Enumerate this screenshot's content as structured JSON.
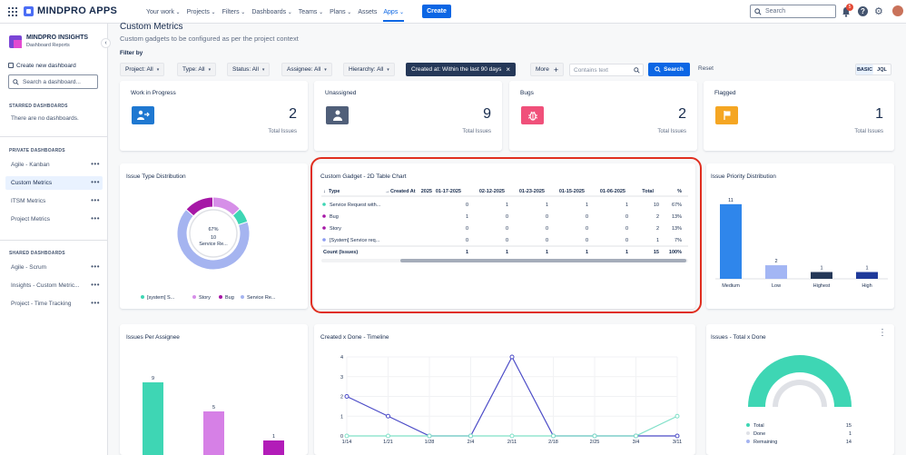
{
  "topbar": {
    "brand": "MINDPRO APPS",
    "nav": [
      {
        "label": "Your work",
        "has_caret": true
      },
      {
        "label": "Projects",
        "has_caret": true
      },
      {
        "label": "Filters",
        "has_caret": true
      },
      {
        "label": "Dashboards",
        "has_caret": true
      },
      {
        "label": "Teams",
        "has_caret": true
      },
      {
        "label": "Plans",
        "has_caret": true
      },
      {
        "label": "Assets",
        "has_caret": false
      },
      {
        "label": "Apps",
        "has_caret": true,
        "active": true
      }
    ],
    "create_label": "Create",
    "search_placeholder": "Search",
    "notification_count": "5",
    "help_label": "?",
    "accent": "#0c66e4"
  },
  "sidebar": {
    "title": "MINDPRO INSIGHTS",
    "subtitle": "Dashboard Reports",
    "create_label": "Create new dashboard",
    "search_placeholder": "Search a dashboard...",
    "starred_title": "STARRED DASHBOARDS",
    "starred_empty": "There are no dashboards.",
    "private_title": "PRIVATE DASHBOARDS",
    "private_items": [
      "Agile - Kanban",
      "Custom Metrics",
      "ITSM Metrics",
      "Project Metrics"
    ],
    "active_item": "Custom Metrics",
    "shared_title": "SHARED DASHBOARDS",
    "shared_items": [
      "Agile - Scrum",
      "Insights - Custom Metric...",
      "Project - Time Tracking"
    ]
  },
  "header": {
    "title": "Custom Metrics",
    "subtitle": "Custom gadgets to be configured as per the project context",
    "filter_by": "Filter by"
  },
  "filters": {
    "project": "Project: All",
    "type": "Type: All",
    "status": "Status: All",
    "assignee": "Assignee: All",
    "hierarchy": "Hierarchy: All",
    "created": "Created at: Within the last 90 days",
    "more": "More",
    "contains_placeholder": "Contains text",
    "search_label": "Search",
    "reset_label": "Reset",
    "mode_basic": "BASIC",
    "mode_jql": "JQL"
  },
  "kpis": [
    {
      "title": "Work in Progress",
      "value": "2",
      "label": "Total Issues",
      "icon": "arrow-right-user-icon",
      "color": "#1f78d1"
    },
    {
      "title": "Unassigned",
      "value": "9",
      "label": "Total Issues",
      "icon": "user-icon",
      "color": "#505f79"
    },
    {
      "title": "Bugs",
      "value": "2",
      "label": "Total Issues",
      "icon": "bug-icon",
      "color": "#f0507a"
    },
    {
      "title": "Flagged",
      "value": "1",
      "label": "Total Issues",
      "icon": "flag-icon",
      "color": "#f5a623"
    }
  ],
  "issue_type_distribution": {
    "title": "Issue Type Distribution",
    "center_pct": "67%",
    "center_count": "10",
    "center_label": "Service Re...",
    "legend": [
      {
        "label": "[system] S...",
        "color": "#3ed6b4"
      },
      {
        "label": "Story",
        "color": "#d68fe8"
      },
      {
        "label": "Bug",
        "color": "#a617a6"
      },
      {
        "label": "Service Re...",
        "color": "#a5b4f0"
      }
    ]
  },
  "table_gadget": {
    "title": "Custom Gadget - 2D Table Chart",
    "headers": [
      "Type",
      "Created At",
      "2025",
      "01-17-2025",
      "02-12-2025",
      "01-23-2025",
      "01-15-2025",
      "01-06-2025",
      "Total",
      "%"
    ],
    "rows": [
      {
        "type": "Service Request with...",
        "color": "#3ed6b4",
        "cells": [
          "0",
          "1",
          "1",
          "1",
          "1",
          "10",
          "67%"
        ]
      },
      {
        "type": "Bug",
        "color": "#a617a6",
        "cells": [
          "1",
          "0",
          "0",
          "0",
          "0",
          "2",
          "13%"
        ]
      },
      {
        "type": "Story",
        "color": "#a617a6",
        "cells": [
          "0",
          "0",
          "0",
          "0",
          "0",
          "2",
          "13%"
        ]
      },
      {
        "type": "[System] Service req...",
        "color": "#8b9bf0",
        "cells": [
          "0",
          "0",
          "0",
          "0",
          "0",
          "1",
          "7%"
        ]
      }
    ],
    "footer": {
      "label": "Count (Issues)",
      "cells": [
        "1",
        "1",
        "1",
        "1",
        "1",
        "15",
        "100%"
      ]
    }
  },
  "priority_distribution": {
    "title": "Issue Priority Distribution",
    "colors": [
      "#2f86eb",
      "#a3b6f4",
      "#253858",
      "#1f3a9a"
    ]
  },
  "issues_per_assignee": {
    "title": "Issues Per Assignee",
    "colors": [
      "#3ed6b4",
      "#d680e6",
      "#b21cb8"
    ]
  },
  "timeline": {
    "title": "Created x Done - Timeline",
    "colors": {
      "created": "#4b4bc7",
      "done": "#7fe0c8"
    }
  },
  "total_done": {
    "title": "Issues - Total x Done",
    "legend": [
      {
        "label": "Total",
        "value": "15",
        "color": "#3ed6b4"
      },
      {
        "label": "Done",
        "value": "1",
        "color": "#dfe1e6"
      },
      {
        "label": "Remaining",
        "value": "14",
        "color": "#a5b4f0"
      }
    ]
  },
  "chart_data": [
    {
      "type": "pie",
      "title": "Issue Type Distribution",
      "categories": [
        "[system] S...",
        "Story",
        "Bug",
        "Service Re..."
      ],
      "values": [
        1,
        2,
        2,
        10
      ]
    },
    {
      "type": "bar",
      "title": "Issue Priority Distribution",
      "categories": [
        "Medium",
        "Low",
        "Highest",
        "High"
      ],
      "values": [
        11,
        2,
        1,
        1
      ],
      "ylim": [
        0,
        12
      ]
    },
    {
      "type": "bar",
      "title": "Issues Per Assignee",
      "categories": [
        "",
        "",
        ""
      ],
      "values": [
        9,
        5,
        1
      ],
      "ylim": [
        0,
        10
      ]
    },
    {
      "type": "line",
      "title": "Created x Done - Timeline",
      "x": [
        "1/14",
        "1/21",
        "1/28",
        "2/4",
        "2/11",
        "2/18",
        "2/25",
        "3/4",
        "3/11"
      ],
      "ylim": [
        0,
        4
      ],
      "yticks": [
        0,
        1,
        2,
        3,
        4
      ],
      "series": [
        {
          "values": [
            2,
            1,
            0,
            0,
            4,
            0,
            0,
            0,
            0
          ]
        },
        {
          "values": [
            0,
            0,
            0,
            0,
            0,
            0,
            0,
            0,
            1
          ]
        }
      ]
    },
    {
      "type": "pie",
      "title": "Issues - Total x Done",
      "categories": [
        "Total",
        "Done",
        "Remaining"
      ],
      "values": [
        15,
        1,
        14
      ]
    }
  ]
}
